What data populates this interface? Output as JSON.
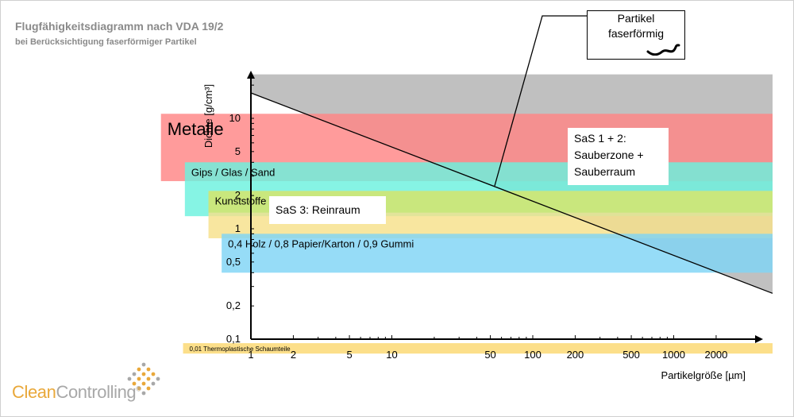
{
  "title": "Flugfähigkeitsdiagramm nach VDA 19/2",
  "subtitle": "bei Berücksichtigung faserförmiger Partikel",
  "callout": {
    "line1": "Partikel",
    "line2": "faserförmig"
  },
  "zones": {
    "sas12": {
      "line1": "SaS 1 + 2:",
      "line2": "Sauberzone +",
      "line3": "Sauberraum"
    },
    "sas3": "SaS 3: Reinraum"
  },
  "brand": {
    "part1": "Clean",
    "part2": "Controlling",
    "mark": "®"
  },
  "chart_data": {
    "type": "area",
    "xlabel": "Partikelgröße [µm]",
    "ylabel": "Dichte [g/cm³]",
    "x_scale": "log",
    "y_scale": "log",
    "xlim": [
      1,
      2800
    ],
    "ylim": [
      0.1,
      25
    ],
    "x_ticks": [
      1,
      2,
      5,
      10,
      50,
      100,
      200,
      500,
      1000,
      2000
    ],
    "x_tick_labels": [
      "1",
      "2",
      "5",
      "10",
      "50",
      "100",
      "200",
      "500",
      "1000",
      "2000"
    ],
    "y_ticks": [
      0.1,
      0.2,
      0.5,
      1,
      2,
      5,
      10
    ],
    "y_tick_labels": [
      "0,1",
      "0,2",
      "0,5",
      "1",
      "2",
      "5",
      "10"
    ],
    "boundary_line": {
      "x": [
        1,
        2800
      ],
      "y": [
        17,
        0.26
      ]
    },
    "materials": [
      {
        "label": "Metalle",
        "x_start": 0.23,
        "y_min": 2.7,
        "y_max": 11,
        "color": "#ff8585",
        "label_size": "large"
      },
      {
        "label": "Gips / Glas / Sand",
        "x_start": 0.34,
        "y_min": 1.3,
        "y_max": 4,
        "color": "#6bf2de",
        "label_size": "small"
      },
      {
        "label": "Kunststoffe",
        "x_start": 0.5,
        "y_min": 0.82,
        "y_max": 2.2,
        "color": "#f6e08a",
        "label_size": "small"
      },
      {
        "label": "0,4 Holz / 0,8 Papier/Karton / 0,9 Gummi",
        "x_start": 0.62,
        "y_min": 0.4,
        "y_max": 0.9,
        "color": "#7fd4f5",
        "label_size": "small"
      },
      {
        "label": "0,01 Thermoplastische Schaumteile",
        "x_start": 0.33,
        "y_min": 0.074,
        "y_max": 0.092,
        "color": "#fcdf8a",
        "label_size": "tiny"
      }
    ]
  },
  "colors": {
    "grey_region": "#999999",
    "kunst_overlay": "#c4e778",
    "axis": "#000000",
    "brand_orange": "#e9a83a",
    "brand_grey": "#a8a8a8"
  }
}
